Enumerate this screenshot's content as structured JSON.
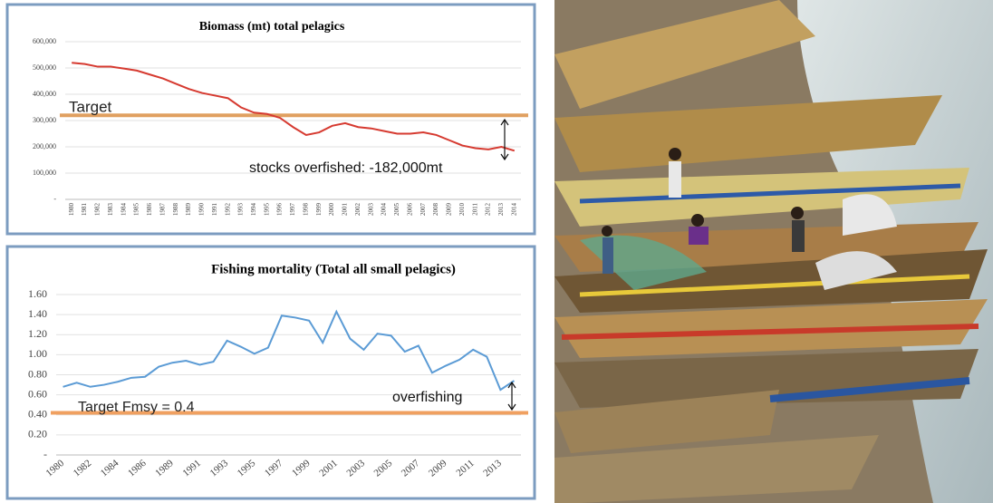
{
  "chart_data": [
    {
      "type": "line",
      "title": "Biomass (mt) total pelagics",
      "categories": [
        "1980",
        "1981",
        "1982",
        "1983",
        "1984",
        "1985",
        "1986",
        "1987",
        "1988",
        "1989",
        "1990",
        "1991",
        "1992",
        "1993",
        "1994",
        "1995",
        "1996",
        "1997",
        "1998",
        "1999",
        "2000",
        "2001",
        "2002",
        "2003",
        "2004",
        "2005",
        "2006",
        "2007",
        "2008",
        "2009",
        "2010",
        "2011",
        "2012",
        "2013",
        "2014"
      ],
      "series": [
        {
          "color": "#d63a30",
          "values": [
            520000,
            515000,
            505000,
            505000,
            498000,
            490000,
            475000,
            460000,
            440000,
            420000,
            405000,
            395000,
            385000,
            350000,
            330000,
            325000,
            310000,
            275000,
            245000,
            255000,
            280000,
            290000,
            275000,
            270000,
            260000,
            250000,
            250000,
            255000,
            245000,
            225000,
            205000,
            195000,
            190000,
            200000,
            185000
          ]
        }
      ],
      "ylim": [
        0,
        600000
      ],
      "yticks": [
        {
          "value": 0,
          "label": "-"
        },
        {
          "value": 100000,
          "label": "100,000"
        },
        {
          "value": 200000,
          "label": "200,000"
        },
        {
          "value": 300000,
          "label": "300,000"
        },
        {
          "value": 400000,
          "label": "400,000"
        },
        {
          "value": 500000,
          "label": "500,000"
        },
        {
          "value": 600000,
          "label": "600,000"
        }
      ],
      "target": {
        "value": 320000,
        "label": "Target",
        "color": "#e0a060"
      },
      "annotations": [
        "stocks overfished: -182,000mt"
      ],
      "grid": true
    },
    {
      "type": "line",
      "title": "Fishing mortality (Total all small pelagics)",
      "categories": [
        "1980",
        null,
        "1982",
        null,
        "1984",
        null,
        "1986",
        null,
        "1989",
        null,
        "1991",
        null,
        "1993",
        null,
        "1995",
        null,
        "1997",
        null,
        "1999",
        null,
        "2001",
        null,
        "2003",
        null,
        "2005",
        null,
        "2007",
        null,
        "2009",
        null,
        "2011",
        null,
        "2013",
        null
      ],
      "series": [
        {
          "color": "#5b9bd5",
          "values": [
            0.68,
            0.72,
            0.68,
            0.7,
            0.73,
            0.77,
            0.78,
            0.88,
            0.92,
            0.94,
            0.9,
            0.93,
            1.14,
            1.08,
            1.01,
            1.07,
            1.39,
            1.37,
            1.34,
            1.12,
            1.43,
            1.16,
            1.05,
            1.21,
            1.19,
            1.03,
            1.09,
            0.82,
            0.89,
            0.95,
            1.05,
            0.98,
            0.65,
            0.74
          ]
        }
      ],
      "ylim": [
        0,
        1.6
      ],
      "yticks": [
        {
          "value": 0,
          "label": "-"
        },
        {
          "value": 0.2,
          "label": "0.20"
        },
        {
          "value": 0.4,
          "label": "0.40"
        },
        {
          "value": 0.6,
          "label": "0.60"
        },
        {
          "value": 0.8,
          "label": "0.80"
        },
        {
          "value": 1.0,
          "label": "1.00"
        },
        {
          "value": 1.2,
          "label": "1.20"
        },
        {
          "value": 1.4,
          "label": "1.40"
        },
        {
          "value": 1.6,
          "label": "1.60"
        }
      ],
      "target": {
        "value": 0.42,
        "label": "Target Fmsy = 0.4",
        "color": "#f0a060"
      },
      "annotations": [
        "overfishing"
      ],
      "grid": true
    }
  ]
}
